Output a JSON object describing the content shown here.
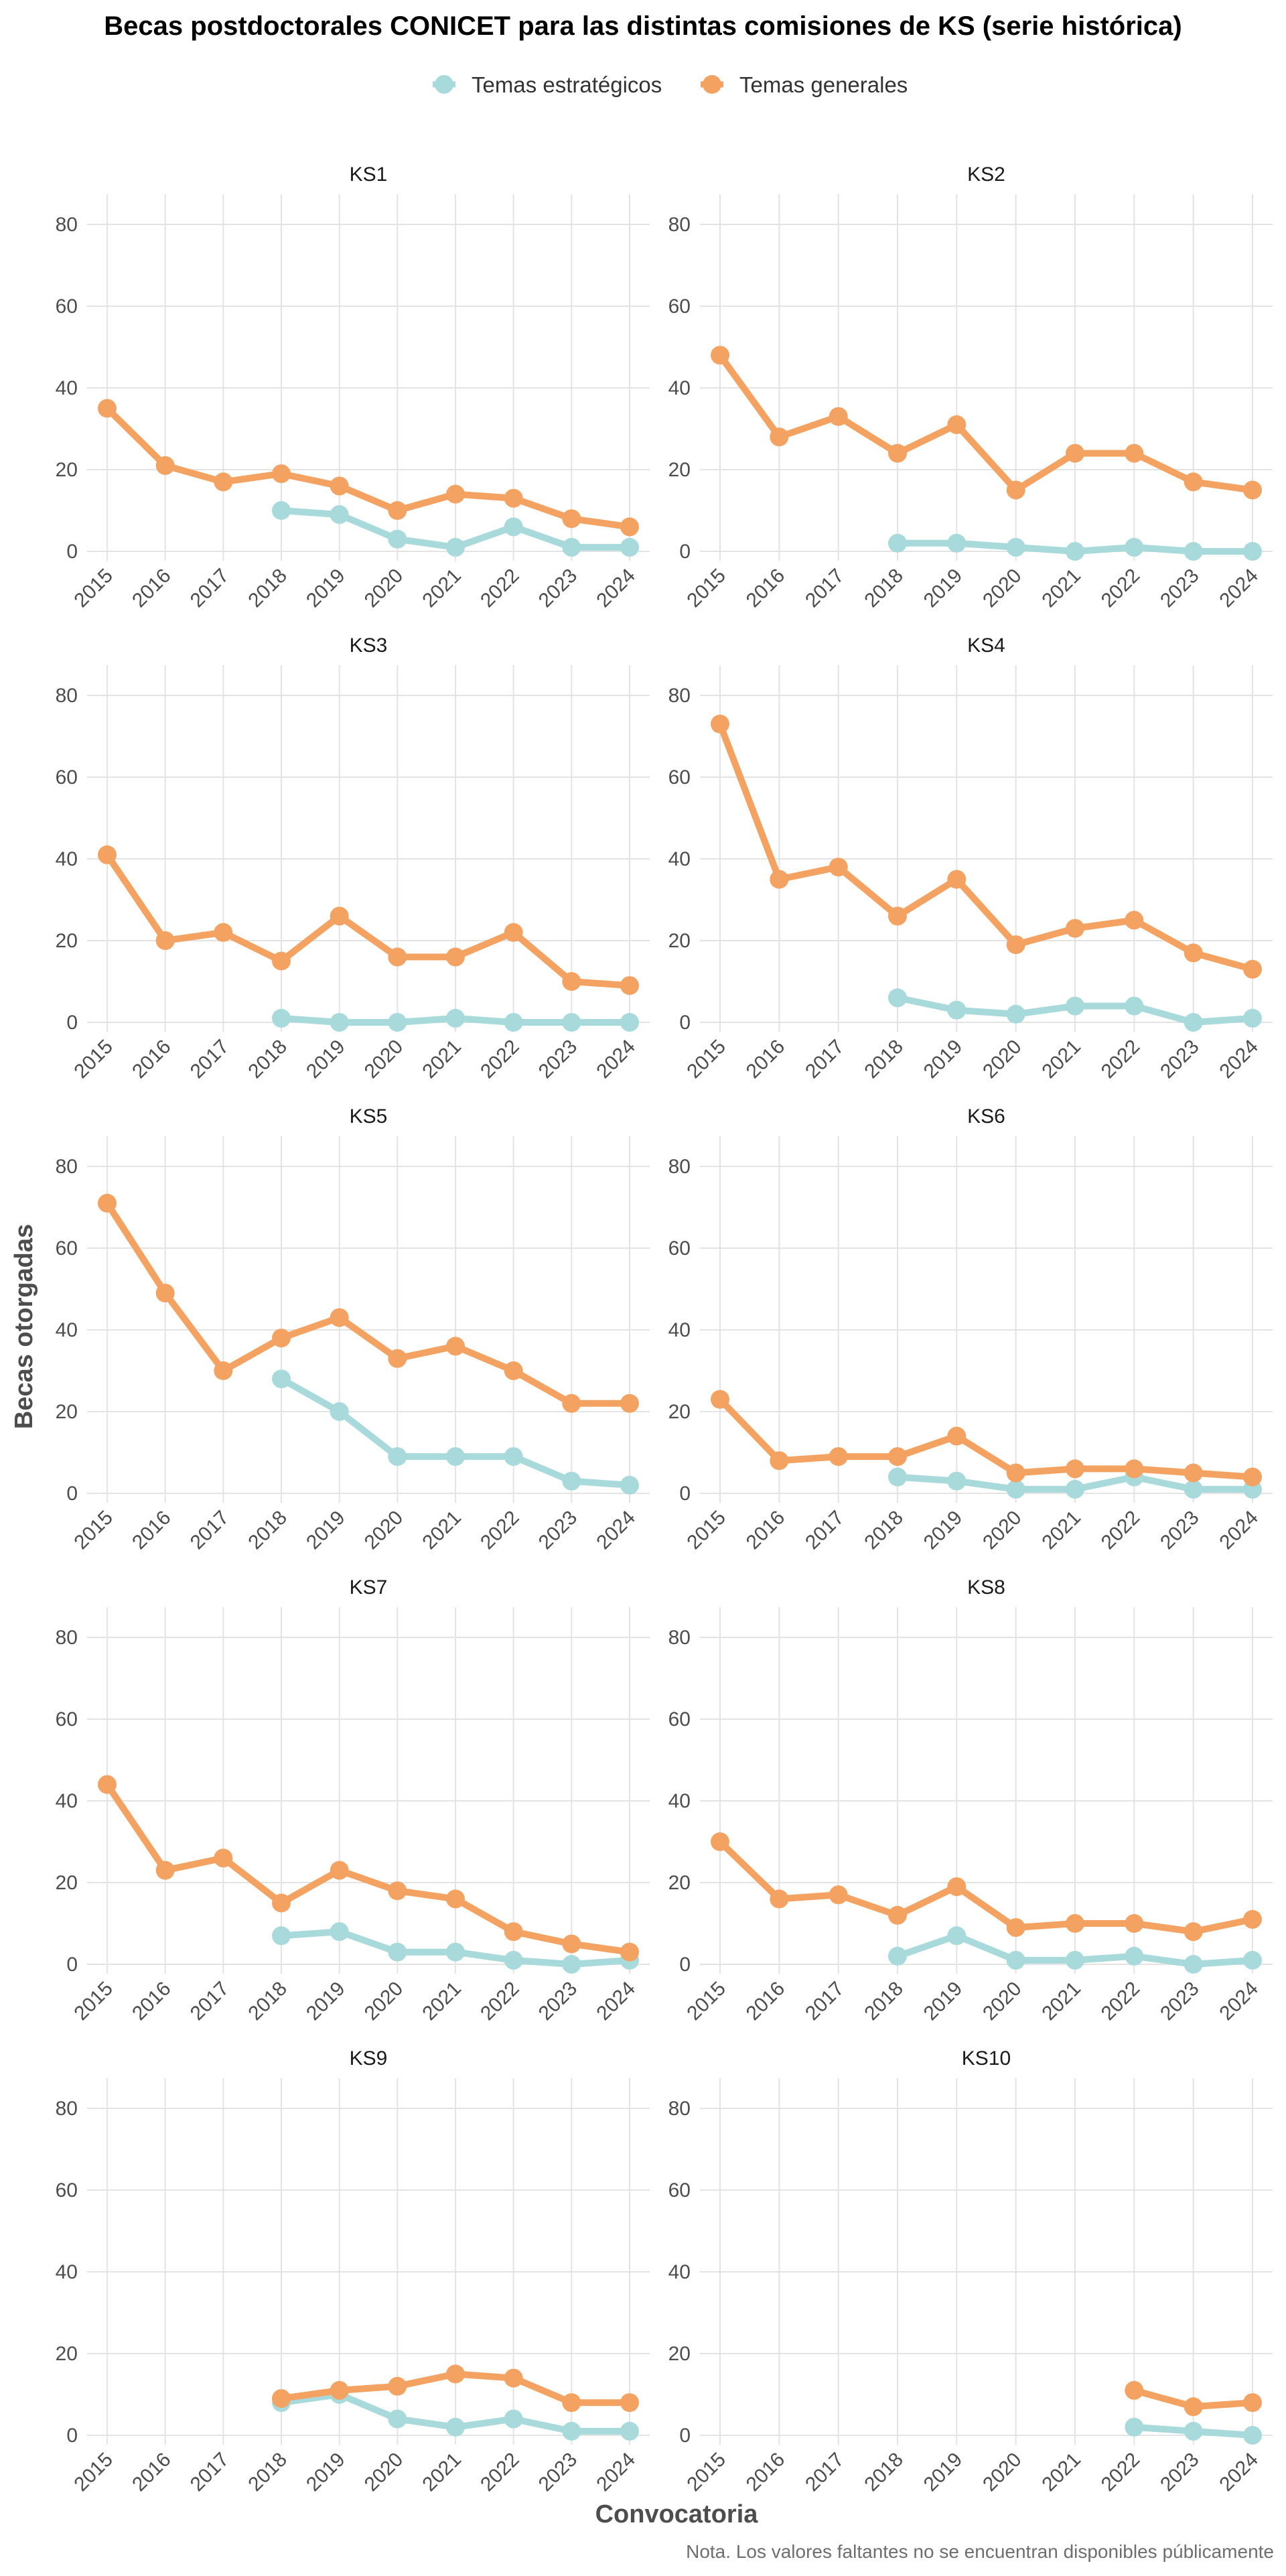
{
  "chart_data": {
    "type": "line",
    "title": "Becas postdoctorales CONICET para las distintas comisiones de KS (serie histórica)",
    "xlabel": "Convocatoria",
    "ylabel": "Becas otorgadas",
    "note": "Nota. Los valores faltantes no se encuentran disponibles públicamente",
    "x": [
      "2015",
      "2016",
      "2017",
      "2018",
      "2019",
      "2020",
      "2021",
      "2022",
      "2023",
      "2024"
    ],
    "yticks": [
      "0",
      "20",
      "40",
      "60",
      "80"
    ],
    "ylim": [
      0,
      80
    ],
    "grid": true,
    "legend_position": "top",
    "colors": {
      "Temas estratégicos": "#a8dadc",
      "Temas generales": "#f4a261"
    },
    "legend": [
      "Temas estratégicos",
      "Temas generales"
    ],
    "panels": [
      {
        "name": "KS1",
        "series": [
          {
            "name": "Temas estratégicos",
            "values": [
              null,
              null,
              null,
              10,
              9,
              3,
              1,
              6,
              1,
              1
            ]
          },
          {
            "name": "Temas generales",
            "values": [
              35,
              21,
              17,
              19,
              16,
              10,
              14,
              13,
              8,
              6
            ]
          }
        ]
      },
      {
        "name": "KS2",
        "series": [
          {
            "name": "Temas estratégicos",
            "values": [
              null,
              null,
              null,
              2,
              2,
              1,
              0,
              1,
              0,
              0
            ]
          },
          {
            "name": "Temas generales",
            "values": [
              48,
              28,
              33,
              24,
              31,
              15,
              24,
              24,
              17,
              15
            ]
          }
        ]
      },
      {
        "name": "KS3",
        "series": [
          {
            "name": "Temas estratégicos",
            "values": [
              null,
              null,
              null,
              1,
              0,
              0,
              1,
              0,
              0,
              0
            ]
          },
          {
            "name": "Temas generales",
            "values": [
              41,
              20,
              22,
              15,
              26,
              16,
              16,
              22,
              10,
              9
            ]
          }
        ]
      },
      {
        "name": "KS4",
        "series": [
          {
            "name": "Temas estratégicos",
            "values": [
              null,
              null,
              null,
              6,
              3,
              2,
              4,
              4,
              0,
              1
            ]
          },
          {
            "name": "Temas generales",
            "values": [
              73,
              35,
              38,
              26,
              35,
              19,
              23,
              25,
              17,
              13
            ]
          }
        ]
      },
      {
        "name": "KS5",
        "series": [
          {
            "name": "Temas estratégicos",
            "values": [
              null,
              null,
              null,
              28,
              20,
              9,
              9,
              9,
              3,
              2
            ]
          },
          {
            "name": "Temas generales",
            "values": [
              71,
              49,
              30,
              38,
              43,
              33,
              36,
              30,
              22,
              22
            ]
          }
        ]
      },
      {
        "name": "KS6",
        "series": [
          {
            "name": "Temas estratégicos",
            "values": [
              null,
              null,
              null,
              4,
              3,
              1,
              1,
              4,
              1,
              1
            ]
          },
          {
            "name": "Temas generales",
            "values": [
              23,
              8,
              9,
              9,
              14,
              5,
              6,
              6,
              5,
              4
            ]
          }
        ]
      },
      {
        "name": "KS7",
        "series": [
          {
            "name": "Temas estratégicos",
            "values": [
              null,
              null,
              null,
              7,
              8,
              3,
              3,
              1,
              0,
              1
            ]
          },
          {
            "name": "Temas generales",
            "values": [
              44,
              23,
              26,
              15,
              23,
              18,
              16,
              8,
              5,
              3
            ]
          }
        ]
      },
      {
        "name": "KS8",
        "series": [
          {
            "name": "Temas estratégicos",
            "values": [
              null,
              null,
              null,
              2,
              7,
              1,
              1,
              2,
              0,
              1
            ]
          },
          {
            "name": "Temas generales",
            "values": [
              30,
              16,
              17,
              12,
              19,
              9,
              10,
              10,
              8,
              11
            ]
          }
        ]
      },
      {
        "name": "KS9",
        "series": [
          {
            "name": "Temas estratégicos",
            "values": [
              null,
              null,
              null,
              8,
              10,
              4,
              2,
              4,
              1,
              1
            ]
          },
          {
            "name": "Temas generales",
            "values": [
              null,
              null,
              null,
              9,
              11,
              12,
              15,
              14,
              8,
              8
            ]
          }
        ]
      },
      {
        "name": "KS10",
        "series": [
          {
            "name": "Temas estratégicos",
            "values": [
              null,
              null,
              null,
              null,
              null,
              null,
              null,
              2,
              1,
              0
            ]
          },
          {
            "name": "Temas generales",
            "values": [
              null,
              null,
              null,
              null,
              null,
              null,
              null,
              11,
              7,
              8
            ]
          }
        ]
      }
    ]
  }
}
